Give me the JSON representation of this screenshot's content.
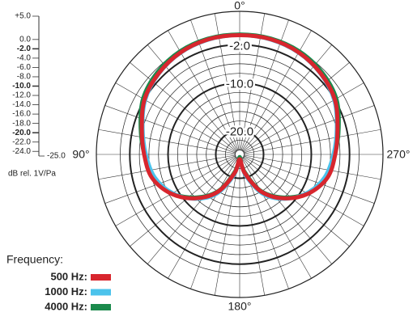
{
  "chart_data": {
    "type": "polar",
    "rlabel": "dB rel. 1V/Pa",
    "legend_title": "Frequency:",
    "theta_labels": [
      "0°",
      "90°",
      "180°",
      "270°"
    ],
    "theta": [
      0,
      15,
      30,
      45,
      60,
      75,
      90,
      105,
      120,
      135,
      150,
      165,
      180,
      195,
      210,
      225,
      240,
      255,
      270,
      285,
      300,
      315,
      330,
      345
    ],
    "rlim": [
      -25,
      5
    ],
    "yticks": [
      {
        "value": 5,
        "label": "+5.0"
      },
      {
        "value": 0,
        "label": "0.0"
      },
      {
        "value": -2,
        "label": "-2.0",
        "major": true
      },
      {
        "value": -4,
        "label": "-4.0"
      },
      {
        "value": -6,
        "label": "-6.0"
      },
      {
        "value": -8,
        "label": "-8.0"
      },
      {
        "value": -10,
        "label": "-10.0",
        "major": true
      },
      {
        "value": -12,
        "label": "-12.0"
      },
      {
        "value": -14,
        "label": "-14.0"
      },
      {
        "value": -16,
        "label": "-16.0"
      },
      {
        "value": -18,
        "label": "-18.0"
      },
      {
        "value": -20,
        "label": "-20.0",
        "major": true
      },
      {
        "value": -22,
        "label": "-22.0"
      },
      {
        "value": -24,
        "label": "-24.0"
      },
      {
        "value": -25,
        "label": "-25.0"
      }
    ],
    "series": [
      {
        "name": "4000 Hz:",
        "color": "#1b8a4c",
        "values": [
          0.2,
          0.2,
          0,
          -0.6,
          -1.6,
          -3.5,
          -5,
          -6.2,
          -8.7,
          -12.3,
          -16.3,
          -21.5,
          -24.5,
          -21.5,
          -16.3,
          -12.3,
          -8.7,
          -6.2,
          -5,
          -3.5,
          -1.6,
          -0.6,
          0,
          0.2
        ]
      },
      {
        "name": "1000 Hz:",
        "color": "#4cc3ec",
        "values": [
          0,
          -0.1,
          -0.4,
          -1.1,
          -2.2,
          -4,
          -5.4,
          -6.6,
          -8.8,
          -11.8,
          -15.5,
          -20.5,
          -24,
          -20.5,
          -15.5,
          -11.8,
          -8.8,
          -6.6,
          -5.4,
          -4,
          -2.2,
          -1.1,
          -0.4,
          -0.1
        ]
      },
      {
        "name": "500 Hz:",
        "color": "#d8262e",
        "values": [
          0,
          0,
          -0.3,
          -1,
          -2,
          -3.8,
          -5,
          -6,
          -8.5,
          -12,
          -16,
          -21,
          -24,
          -21,
          -16,
          -12,
          -8.5,
          -6,
          -5,
          -3.8,
          -2,
          -1,
          -0.3,
          0
        ]
      }
    ]
  }
}
